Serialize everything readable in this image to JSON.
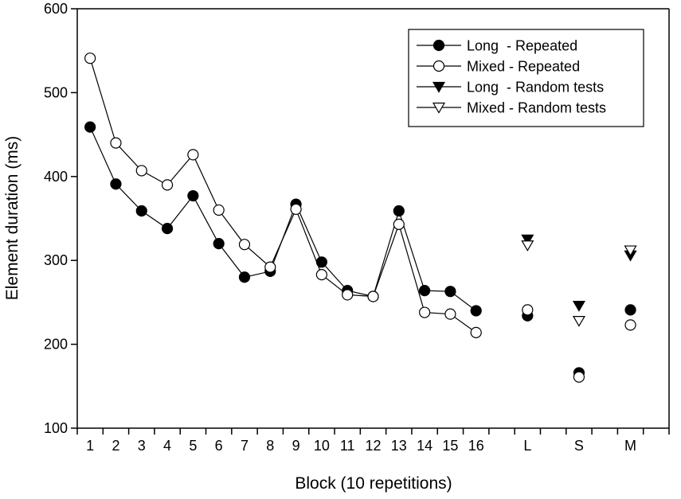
{
  "chart_data": {
    "type": "scatter",
    "xlabel": "Block (10 repetitions)",
    "ylabel": "Element duration (ms)",
    "ylim": [
      100,
      600
    ],
    "yticks": [
      100,
      200,
      300,
      400,
      500,
      600
    ],
    "categories": [
      "1",
      "2",
      "3",
      "4",
      "5",
      "6",
      "7",
      "8",
      "9",
      "10",
      "11",
      "12",
      "13",
      "14",
      "15",
      "16",
      "",
      "L",
      "",
      "S",
      "",
      "M",
      ""
    ],
    "grid": false,
    "legend_position": "top-right",
    "series": [
      {
        "name": "Long  - Repeated",
        "marker": "circle-filled",
        "connected": true,
        "points": [
          {
            "x": "1",
            "y": 459
          },
          {
            "x": "2",
            "y": 391
          },
          {
            "x": "3",
            "y": 359
          },
          {
            "x": "4",
            "y": 338
          },
          {
            "x": "5",
            "y": 377
          },
          {
            "x": "6",
            "y": 320
          },
          {
            "x": "7",
            "y": 280
          },
          {
            "x": "8",
            "y": 287
          },
          {
            "x": "9",
            "y": 367
          },
          {
            "x": "10",
            "y": 298
          },
          {
            "x": "11",
            "y": 264
          },
          {
            "x": "12",
            "y": 257
          },
          {
            "x": "13",
            "y": 359
          },
          {
            "x": "14",
            "y": 264
          },
          {
            "x": "15",
            "y": 263
          },
          {
            "x": "16",
            "y": 240
          }
        ],
        "test_points": [
          {
            "x": "L",
            "y": 234
          },
          {
            "x": "S",
            "y": 166
          },
          {
            "x": "M",
            "y": 241
          }
        ]
      },
      {
        "name": "Mixed - Repeated",
        "marker": "circle-open",
        "connected": true,
        "points": [
          {
            "x": "1",
            "y": 541
          },
          {
            "x": "2",
            "y": 440
          },
          {
            "x": "3",
            "y": 407
          },
          {
            "x": "4",
            "y": 390
          },
          {
            "x": "5",
            "y": 426
          },
          {
            "x": "6",
            "y": 360
          },
          {
            "x": "7",
            "y": 319
          },
          {
            "x": "8",
            "y": 292
          },
          {
            "x": "9",
            "y": 361
          },
          {
            "x": "10",
            "y": 283
          },
          {
            "x": "11",
            "y": 259
          },
          {
            "x": "12",
            "y": 257
          },
          {
            "x": "13",
            "y": 343
          },
          {
            "x": "14",
            "y": 238
          },
          {
            "x": "15",
            "y": 236
          },
          {
            "x": "16",
            "y": 214
          }
        ],
        "test_points": [
          {
            "x": "L",
            "y": 241
          },
          {
            "x": "S",
            "y": 161
          },
          {
            "x": "M",
            "y": 223
          }
        ]
      },
      {
        "name": "Long  - Random tests",
        "marker": "triangle-down-filled",
        "connected": false,
        "points": [
          {
            "x": "L",
            "y": 325
          },
          {
            "x": "S",
            "y": 246
          },
          {
            "x": "M",
            "y": 306
          }
        ]
      },
      {
        "name": "Mixed - Random tests",
        "marker": "triangle-down-open",
        "connected": false,
        "points": [
          {
            "x": "L",
            "y": 318
          },
          {
            "x": "S",
            "y": 228
          },
          {
            "x": "M",
            "y": 312
          }
        ]
      }
    ]
  }
}
